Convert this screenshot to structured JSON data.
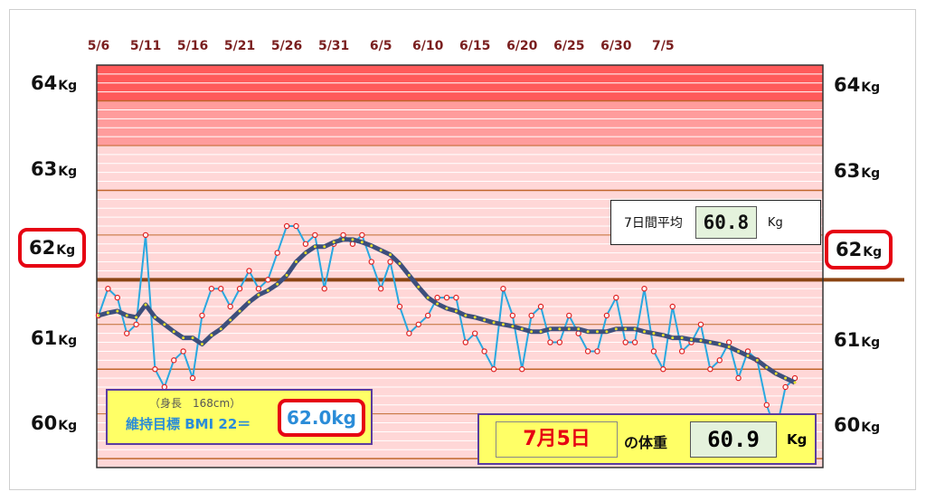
{
  "chart_data": {
    "type": "line",
    "x_tick_labels": [
      "5/6",
      "5/11",
      "5/16",
      "5/21",
      "5/26",
      "5/31",
      "6/5",
      "6/10",
      "6/15",
      "6/20",
      "6/25",
      "6/30",
      "7/5"
    ],
    "y_tick_labels": {
      "64": {
        "n": "64",
        "u": "Kg"
      },
      "63": {
        "n": "63",
        "u": "Kg"
      },
      "62": {
        "n": "62",
        "u": "Kg"
      },
      "61": {
        "n": "61",
        "u": "Kg"
      },
      "60": {
        "n": "60",
        "u": "Kg"
      }
    },
    "ylim": [
      59.9,
      64.4
    ],
    "target_weight": 62.0,
    "series": [
      {
        "values": [
          61.6,
          61.9,
          61.8,
          61.4,
          61.5,
          62.5,
          61.0,
          60.8,
          61.1,
          61.2,
          60.9,
          61.6,
          61.9,
          61.9,
          61.7,
          61.9,
          62.1,
          61.9,
          62.0,
          62.3,
          62.6,
          62.6,
          62.4,
          62.5,
          61.9,
          62.4,
          62.5,
          62.4,
          62.5,
          62.2,
          61.9,
          62.2,
          61.7,
          61.4,
          61.5,
          61.6,
          61.8,
          61.8,
          61.8,
          61.3,
          61.4,
          61.2,
          61.0,
          61.9,
          61.6,
          61.0,
          61.6,
          61.7,
          61.3,
          61.3,
          61.6,
          61.4,
          61.2,
          61.2,
          61.6,
          61.8,
          61.3,
          61.3,
          61.9,
          61.2,
          61.0,
          61.7,
          61.2,
          61.3,
          61.5,
          61.0,
          61.1,
          61.3,
          60.9,
          61.2,
          61.1,
          60.6,
          60.3,
          60.8,
          60.9
        ],
        "color": "#29a8e0"
      },
      {
        "values": [
          61.6,
          61.63,
          61.65,
          61.6,
          61.58,
          61.72,
          61.58,
          61.5,
          61.42,
          61.35,
          61.35,
          61.28,
          61.38,
          61.45,
          61.55,
          61.65,
          61.75,
          61.83,
          61.88,
          61.95,
          62.05,
          62.2,
          62.3,
          62.37,
          62.37,
          62.42,
          62.45,
          62.45,
          62.42,
          62.38,
          62.33,
          62.28,
          62.18,
          62.05,
          61.92,
          61.8,
          61.73,
          61.68,
          61.65,
          61.6,
          61.58,
          61.55,
          61.52,
          61.5,
          61.48,
          61.45,
          61.42,
          61.42,
          61.45,
          61.45,
          61.45,
          61.45,
          61.42,
          61.42,
          61.42,
          61.45,
          61.45,
          61.45,
          61.42,
          61.4,
          61.38,
          61.35,
          61.35,
          61.33,
          61.32,
          61.3,
          61.28,
          61.25,
          61.2,
          61.15,
          61.1,
          61.02,
          60.95,
          60.9,
          60.85
        ],
        "color": "#3d4f7c"
      }
    ]
  },
  "avg": {
    "label": "7日間平均",
    "value": "60.8",
    "unit": "Kg"
  },
  "bmi": {
    "height": "（身長　168cm）",
    "label": "維持目標 BMI 22＝",
    "value": "62.0kg"
  },
  "today": {
    "date": "7月5日",
    "of_weight": "の体重",
    "value": "60.9",
    "unit": "Kg"
  },
  "colors": {
    "top_band": "#ff5a5a",
    "pink_band": "#ffd7d7",
    "target_line": "#8b4513",
    "hline": "#c0652a"
  }
}
